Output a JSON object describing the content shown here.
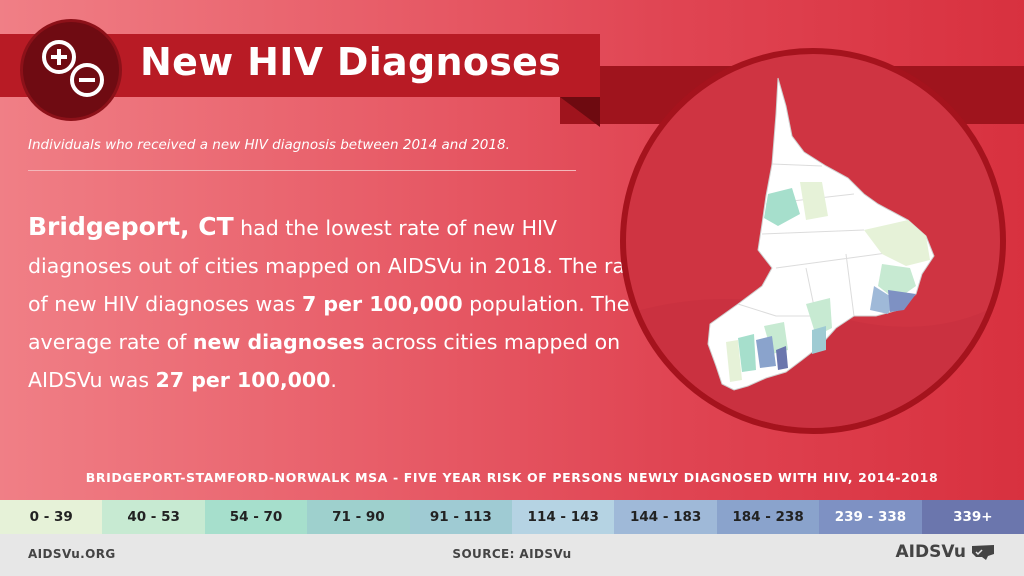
{
  "header": {
    "title": "New HIV Diagnoses",
    "subtitle": "Individuals who received a new HIV diagnosis between 2014 and 2018.",
    "icon": "plus-minus-icon"
  },
  "body": {
    "city": "Bridgeport, CT",
    "text_1": " had the lowest rate of new HIV diagnoses out of cities mapped on AIDSVu in 2018. The rate of new HIV diagnoses was ",
    "rate_city": "7 per 100,000",
    "text_2": " population. The average rate of ",
    "emphasis": "new diagnoses",
    "text_3": " across cities mapped on AIDSVu was ",
    "rate_avg": "27 per 100,000",
    "text_4": "."
  },
  "legend": {
    "title": "BRIDGEPORT-STAMFORD-NORWALK MSA - FIVE YEAR RISK OF PERSONS NEWLY DIAGNOSED WITH HIV, 2014-2018",
    "bins": [
      {
        "label": "0 - 39",
        "color": "#e6f2d8"
      },
      {
        "label": "40 - 53",
        "color": "#c7ead2"
      },
      {
        "label": "54 - 70",
        "color": "#a6dfcc"
      },
      {
        "label": "71 - 90",
        "color": "#9ed0cd"
      },
      {
        "label": "91 - 113",
        "color": "#9fcbd3"
      },
      {
        "label": "114 - 143",
        "color": "#b5d3e3"
      },
      {
        "label": "144 - 183",
        "color": "#9fb9d8"
      },
      {
        "label": "184 - 238",
        "color": "#8aa3cc"
      },
      {
        "label": "239 - 338",
        "color": "#7e91c3"
      },
      {
        "label": "339+",
        "color": "#6b76ad"
      }
    ]
  },
  "footer": {
    "left": "AIDSVu.ORG",
    "source": "SOURCE: AIDSVu",
    "logo": "AIDSVu"
  }
}
